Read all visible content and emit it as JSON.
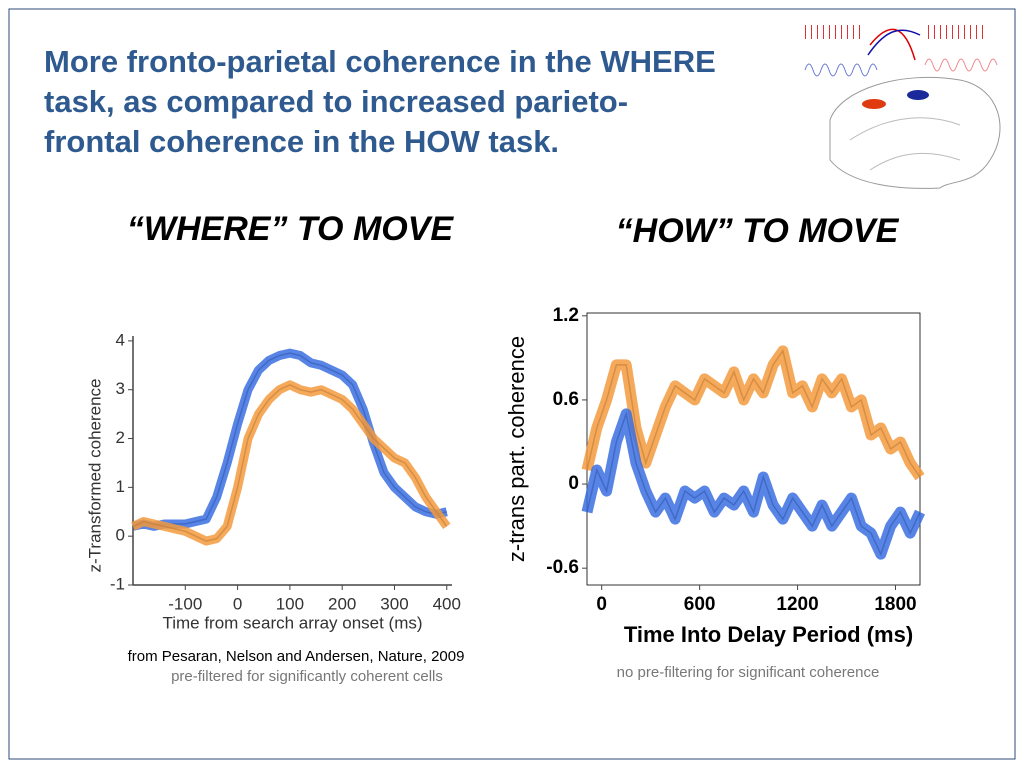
{
  "slide": {
    "title_lines": [
      "More fronto-parietal coherence in the WHERE",
      "task, as compared to increased parieto-",
      "frontal coherence in the HOW task."
    ],
    "left_heading": "“WHERE” TO MOVE",
    "right_heading": "“HOW” TO MOVE",
    "left_source": "from Pesaran, Nelson and Andersen, Nature, 2009",
    "left_note": "pre-filtered for significantly coherent cells",
    "right_note": "no pre-filtering for significant coherence"
  },
  "chart_data": [
    {
      "type": "line",
      "xlabel": "Time from search array onset (ms)",
      "ylabel": "z-Transformed coherence",
      "x": [
        -200,
        -180,
        -160,
        -140,
        -120,
        -100,
        -80,
        -60,
        -40,
        -20,
        0,
        20,
        40,
        60,
        80,
        100,
        120,
        140,
        160,
        180,
        200,
        220,
        240,
        260,
        280,
        300,
        320,
        340,
        360,
        380,
        400
      ],
      "series": [
        {
          "color": "#3b6fe0",
          "values": [
            0.2,
            0.25,
            0.2,
            0.25,
            0.25,
            0.25,
            0.3,
            0.35,
            0.8,
            1.5,
            2.3,
            3.0,
            3.4,
            3.6,
            3.7,
            3.75,
            3.7,
            3.55,
            3.5,
            3.4,
            3.3,
            3.1,
            2.6,
            1.9,
            1.3,
            1.0,
            0.8,
            0.6,
            0.5,
            0.45,
            0.5
          ]
        },
        {
          "color": "#f39a3e",
          "values": [
            0.2,
            0.3,
            0.25,
            0.2,
            0.15,
            0.1,
            0,
            -0.1,
            -0.05,
            0.2,
            1.0,
            2.0,
            2.5,
            2.8,
            3.0,
            3.1,
            3.0,
            2.95,
            3.0,
            2.9,
            2.8,
            2.6,
            2.3,
            2.0,
            1.8,
            1.6,
            1.5,
            1.2,
            0.8,
            0.5,
            0.2
          ]
        }
      ],
      "xlim": [
        -200,
        410
      ],
      "xticks": [
        -100,
        0,
        100,
        200,
        300,
        400
      ],
      "ylim": [
        -1,
        4.1
      ],
      "yticks": [
        -1,
        0,
        1,
        2,
        3,
        4
      ]
    },
    {
      "type": "line",
      "xlabel": "Time Into Delay Period (ms)",
      "ylabel": "z-trans part. coherence",
      "x": [
        -90,
        -30,
        30,
        90,
        150,
        210,
        270,
        330,
        390,
        450,
        510,
        570,
        630,
        690,
        750,
        810,
        870,
        930,
        990,
        1050,
        1110,
        1170,
        1230,
        1290,
        1350,
        1410,
        1470,
        1530,
        1590,
        1650,
        1710,
        1770,
        1830,
        1890,
        1950
      ],
      "series": [
        {
          "color": "#f39a3e",
          "values": [
            0.1,
            0.4,
            0.6,
            0.85,
            0.85,
            0.4,
            0.15,
            0.35,
            0.55,
            0.7,
            0.65,
            0.6,
            0.75,
            0.7,
            0.65,
            0.8,
            0.6,
            0.75,
            0.65,
            0.85,
            0.95,
            0.65,
            0.7,
            0.55,
            0.75,
            0.65,
            0.75,
            0.55,
            0.6,
            0.35,
            0.4,
            0.25,
            0.3,
            0.15,
            0.05
          ]
        },
        {
          "color": "#3b6fe0",
          "values": [
            -0.2,
            0.1,
            -0.05,
            0.3,
            0.5,
            0.15,
            -0.05,
            -0.2,
            -0.1,
            -0.25,
            -0.05,
            -0.1,
            -0.05,
            -0.2,
            -0.1,
            -0.15,
            -0.05,
            -0.2,
            0.05,
            -0.15,
            -0.25,
            -0.1,
            -0.2,
            -0.3,
            -0.15,
            -0.3,
            -0.2,
            -0.1,
            -0.3,
            -0.35,
            -0.5,
            -0.3,
            -0.2,
            -0.35,
            -0.2
          ]
        }
      ],
      "xlim": [
        -90,
        1950
      ],
      "xticks": [
        0,
        600,
        1200,
        1800
      ],
      "ylim": [
        -0.72,
        1.22
      ],
      "yticks": [
        -0.6,
        0,
        0.6,
        1.2
      ]
    }
  ]
}
